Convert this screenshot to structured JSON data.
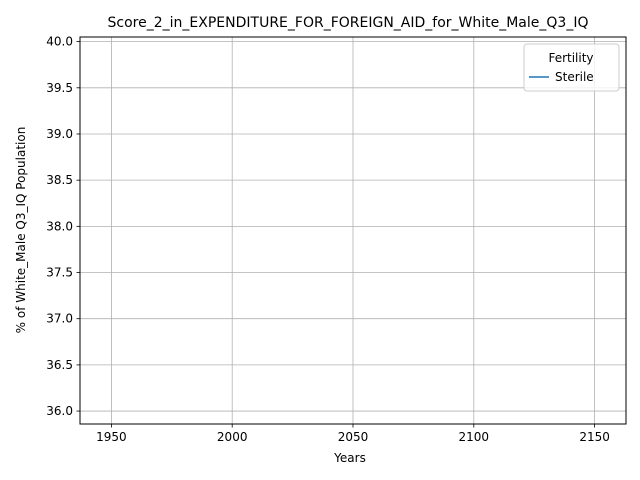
{
  "chart_data": {
    "type": "line",
    "title": "Score_2_in_EXPENDITURE_FOR_FOREIGN_AID_for_White_Male_Q3_IQ",
    "xlabel": "Years",
    "ylabel": "% of White_Male Q3_IQ Population",
    "xlim": [
      1937,
      2163
    ],
    "ylim": [
      35.86,
      40.05
    ],
    "x_ticks": [
      1950,
      2000,
      2050,
      2100,
      2150
    ],
    "x_tick_labels": [
      "1950",
      "2000",
      "2050",
      "2100",
      "2150"
    ],
    "y_ticks": [
      36.0,
      36.5,
      37.0,
      37.5,
      38.0,
      38.5,
      39.0,
      39.5,
      40.0
    ],
    "y_tick_labels": [
      "36.0",
      "36.5",
      "37.0",
      "37.5",
      "38.0",
      "38.5",
      "39.0",
      "39.5",
      "40.0"
    ],
    "grid": true,
    "legend": {
      "title": "Fertility",
      "placement": "top-right"
    },
    "series": [
      {
        "name": "Sterile",
        "color": "#1f77b4",
        "x": [],
        "y": []
      }
    ]
  }
}
